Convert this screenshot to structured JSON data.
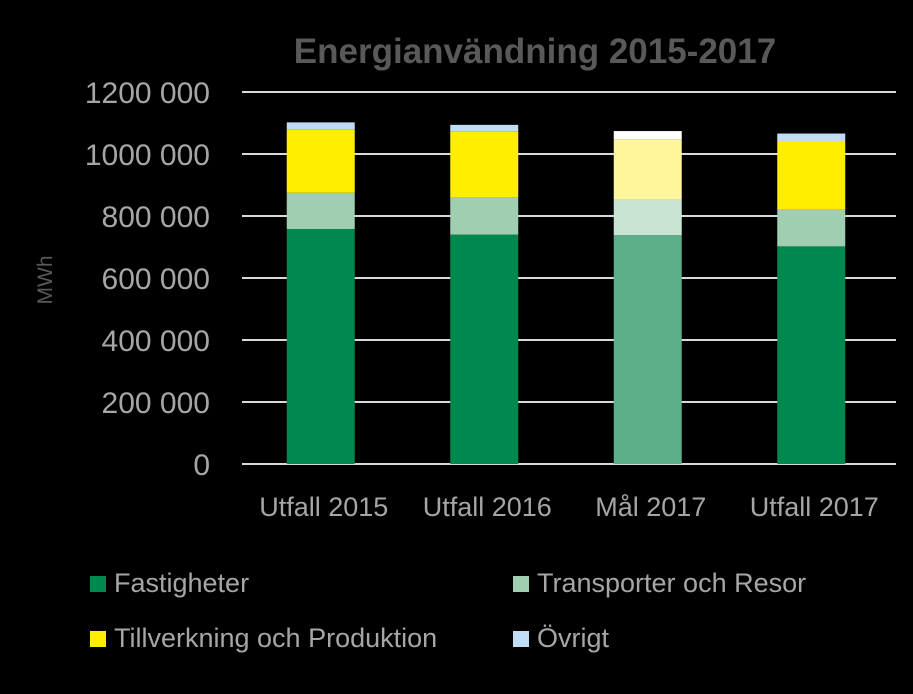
{
  "chart_data": {
    "type": "bar",
    "stacked": true,
    "title": "Energianvändning 2015-2017",
    "ylabel": "MWh",
    "ylim": [
      0,
      1200000
    ],
    "yticks": [
      0,
      200000,
      400000,
      600000,
      800000,
      1000000,
      1200000
    ],
    "ytick_labels": [
      "0",
      "200 000",
      "400 000",
      "600 000",
      "800 000",
      "1000 000",
      "1200 000"
    ],
    "grid": true,
    "legend_position": "bottom",
    "categories": [
      "Utfall 2015",
      "Utfall 2016",
      "Mål 2017",
      "Utfall 2017"
    ],
    "series": [
      {
        "name": "Fastigheter",
        "color": "#00884f",
        "values": [
          758000,
          740000,
          738000,
          702000
        ]
      },
      {
        "name": "Transporter och Resor",
        "color": "#9fcfb0",
        "values": [
          117000,
          120000,
          115000,
          118000
        ]
      },
      {
        "name": "Tillverkning och Produktion",
        "color": "#ffee00",
        "values": [
          203000,
          212000,
          195000,
          222000
        ]
      },
      {
        "name": "Övrigt",
        "color": "#c1dcf5",
        "values": [
          24000,
          22000,
          26000,
          24000
        ]
      }
    ],
    "highlight_faded_category": "Mål 2017",
    "faded_colors": [
      "#5daf8a",
      "#c8e5d3",
      "#fff59b",
      "#ffffff"
    ]
  }
}
